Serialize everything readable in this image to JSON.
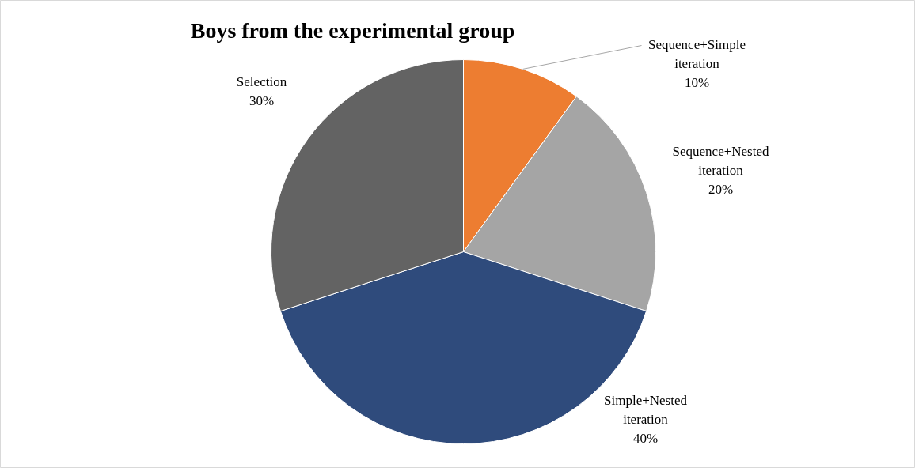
{
  "chart_data": {
    "type": "pie",
    "title": "Boys from the experimental group",
    "categories": [
      "Sequence+Simple iteration",
      "Sequence+Nested iteration",
      "Simple+Nested iteration",
      "Selection"
    ],
    "values": [
      10,
      20,
      40,
      30
    ],
    "colors": [
      "#ed7d31",
      "#a5a5a5",
      "#2f4b7c",
      "#636363"
    ],
    "value_labels": [
      "10%",
      "20%",
      "40%",
      "30%"
    ]
  }
}
